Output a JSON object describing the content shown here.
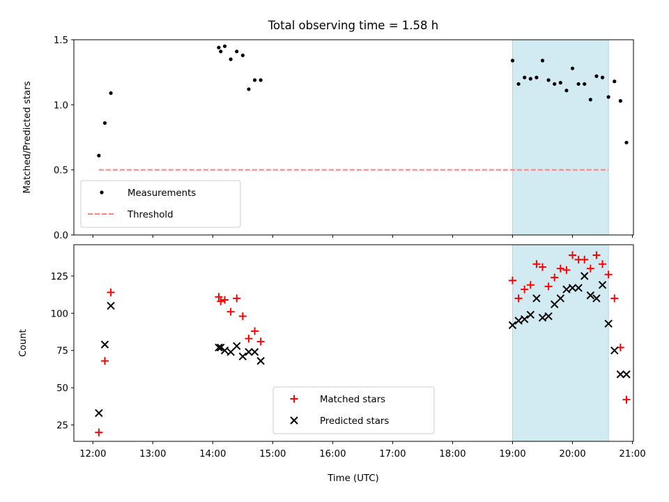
{
  "chart_data": {
    "type": "scatter",
    "title": "Total observing time = 1.58 h",
    "xlabel": "Time (UTC)",
    "x_ticks": [
      "12:00",
      "13:00",
      "14:00",
      "15:00",
      "16:00",
      "17:00",
      "18:00",
      "19:00",
      "20:00",
      "21:00"
    ],
    "x_range": [
      "11:41",
      "21:01"
    ],
    "shaded_interval": {
      "start": "19:00",
      "end": "20:36",
      "color": "#add8e6"
    },
    "panels": [
      {
        "ylabel": "Matched/Predicted stars",
        "ylim": [
          0,
          1.5
        ],
        "y_ticks": [
          "0.0",
          "0.5",
          "1.0",
          "1.5"
        ],
        "legend": {
          "location": "lower left",
          "entries": [
            "Measurements",
            "Threshold"
          ]
        },
        "series": [
          {
            "name": "Measurements",
            "marker": "dot",
            "color": "#000000",
            "points": [
              [
                "12:06",
                0.61
              ],
              [
                "12:12",
                0.86
              ],
              [
                "12:18",
                1.09
              ],
              [
                "14:06",
                1.44
              ],
              [
                "14:08",
                1.41
              ],
              [
                "14:12",
                1.45
              ],
              [
                "14:18",
                1.35
              ],
              [
                "14:24",
                1.41
              ],
              [
                "14:30",
                1.38
              ],
              [
                "14:36",
                1.12
              ],
              [
                "14:42",
                1.19
              ],
              [
                "14:48",
                1.19
              ],
              [
                "19:00",
                1.34
              ],
              [
                "19:06",
                1.16
              ],
              [
                "19:12",
                1.21
              ],
              [
                "19:18",
                1.2
              ],
              [
                "19:24",
                1.21
              ],
              [
                "19:30",
                1.34
              ],
              [
                "19:36",
                1.19
              ],
              [
                "19:42",
                1.16
              ],
              [
                "19:48",
                1.17
              ],
              [
                "19:54",
                1.11
              ],
              [
                "20:00",
                1.28
              ],
              [
                "20:06",
                1.16
              ],
              [
                "20:12",
                1.16
              ],
              [
                "20:18",
                1.04
              ],
              [
                "20:24",
                1.22
              ],
              [
                "20:30",
                1.21
              ],
              [
                "20:36",
                1.06
              ],
              [
                "20:42",
                1.18
              ],
              [
                "20:48",
                1.03
              ],
              [
                "20:54",
                0.71
              ]
            ]
          },
          {
            "name": "Threshold",
            "style": "dashed",
            "color": "#ff7f7f",
            "x": [
              "12:06",
              "20:36"
            ],
            "y": [
              0.5,
              0.5
            ]
          }
        ]
      },
      {
        "ylabel": "Count",
        "ylim": [
          14,
          146
        ],
        "y_ticks": [
          "25",
          "50",
          "75",
          "100",
          "125"
        ],
        "legend": {
          "location": "lower center",
          "entries": [
            "Matched stars",
            "Predicted stars"
          ]
        },
        "series": [
          {
            "name": "Matched stars",
            "marker": "plus",
            "color": "#ff0000",
            "points": [
              [
                "12:06",
                20
              ],
              [
                "12:12",
                68
              ],
              [
                "12:18",
                114
              ],
              [
                "14:06",
                111
              ],
              [
                "14:08",
                108
              ],
              [
                "14:12",
                109
              ],
              [
                "14:18",
                101
              ],
              [
                "14:24",
                110
              ],
              [
                "14:30",
                98
              ],
              [
                "14:36",
                83
              ],
              [
                "14:42",
                88
              ],
              [
                "14:48",
                81
              ],
              [
                "19:00",
                122
              ],
              [
                "19:06",
                110
              ],
              [
                "19:12",
                116
              ],
              [
                "19:18",
                119
              ],
              [
                "19:24",
                133
              ],
              [
                "19:30",
                131
              ],
              [
                "19:36",
                118
              ],
              [
                "19:42",
                124
              ],
              [
                "19:48",
                130
              ],
              [
                "19:54",
                129
              ],
              [
                "20:00",
                139
              ],
              [
                "20:06",
                136
              ],
              [
                "20:12",
                136
              ],
              [
                "20:18",
                130
              ],
              [
                "20:24",
                139
              ],
              [
                "20:30",
                133
              ],
              [
                "20:36",
                126
              ],
              [
                "20:42",
                110
              ],
              [
                "20:48",
                77
              ],
              [
                "20:54",
                42
              ]
            ]
          },
          {
            "name": "Predicted stars",
            "marker": "x",
            "color": "#000000",
            "points": [
              [
                "12:06",
                33
              ],
              [
                "12:12",
                79
              ],
              [
                "12:18",
                105
              ],
              [
                "14:06",
                77
              ],
              [
                "14:08",
                77
              ],
              [
                "14:12",
                75
              ],
              [
                "14:18",
                74
              ],
              [
                "14:24",
                78
              ],
              [
                "14:30",
                71
              ],
              [
                "14:36",
                74
              ],
              [
                "14:42",
                74
              ],
              [
                "14:48",
                68
              ],
              [
                "19:00",
                92
              ],
              [
                "19:06",
                95
              ],
              [
                "19:12",
                96
              ],
              [
                "19:18",
                99
              ],
              [
                "19:24",
                110
              ],
              [
                "19:30",
                97
              ],
              [
                "19:36",
                98
              ],
              [
                "19:42",
                106
              ],
              [
                "19:48",
                110
              ],
              [
                "19:54",
                116
              ],
              [
                "20:00",
                117
              ],
              [
                "20:06",
                117
              ],
              [
                "20:12",
                125
              ],
              [
                "20:18",
                112
              ],
              [
                "20:24",
                110
              ],
              [
                "20:30",
                119
              ],
              [
                "20:36",
                93
              ],
              [
                "20:42",
                75
              ],
              [
                "20:48",
                59
              ],
              [
                "20:54",
                59
              ]
            ]
          }
        ]
      }
    ]
  }
}
